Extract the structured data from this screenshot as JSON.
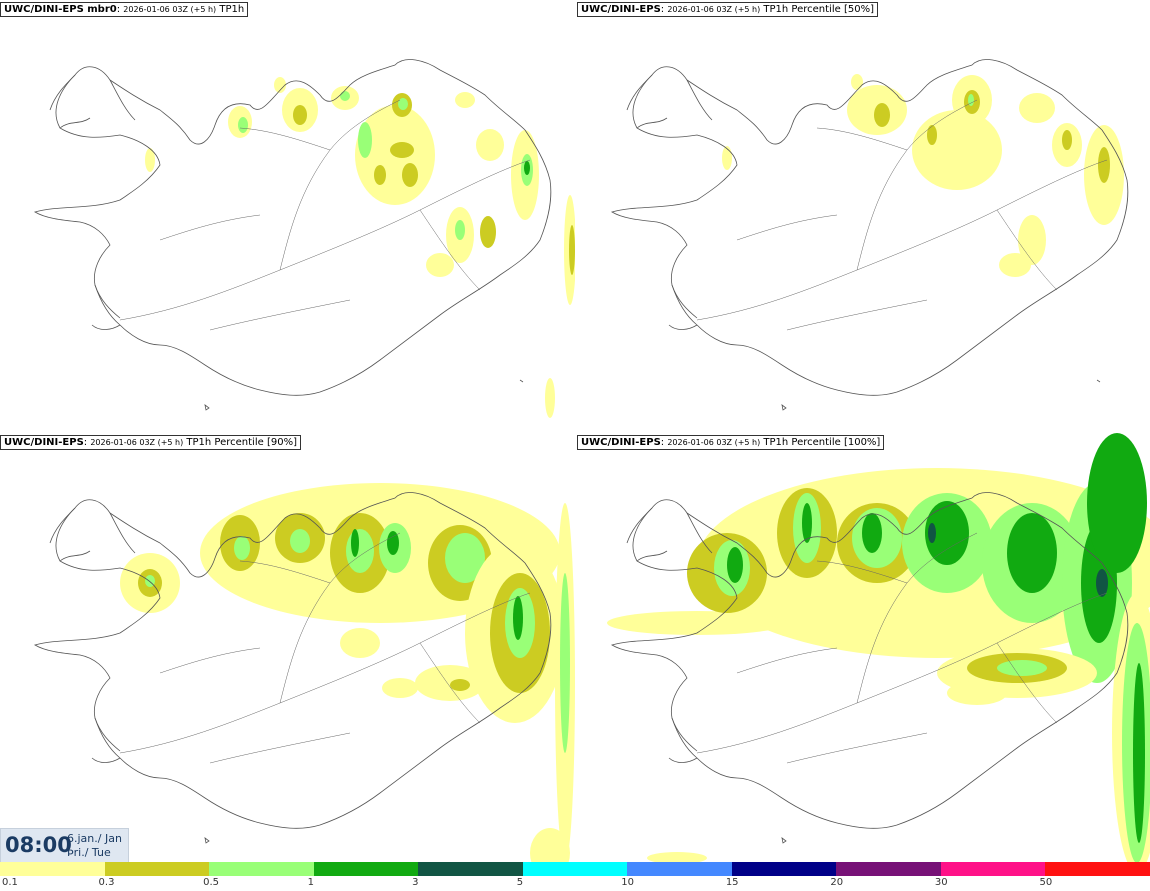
{
  "panels": [
    {
      "model": "UWC/DINI-EPS mbr0",
      "run": "2026-01-06 03Z (+5 h)",
      "field": "TP1h"
    },
    {
      "model": "UWC/DINI-EPS",
      "run": "2026-01-06 03Z (+5 h)",
      "field": "TP1h Percentile [50%]"
    },
    {
      "model": "UWC/DINI-EPS",
      "run": "2026-01-06 03Z (+5 h)",
      "field": "TP1h Percentile [90%]"
    },
    {
      "model": "UWC/DINI-EPS",
      "run": "2026-01-06 03Z (+5 h)",
      "field": "TP1h Percentile [100%]"
    }
  ],
  "timestamp": {
    "time": "08:00",
    "date_line1": "6.jan./ Jan",
    "date_line2": "Þri./ Tue"
  },
  "colorbar": {
    "colors": [
      "#ffff99",
      "#cccc22",
      "#99ff77",
      "#11aa11",
      "#115544",
      "#00ffff",
      "#4488ff",
      "#000088",
      "#771177",
      "#ff1188",
      "#ff1111"
    ],
    "labels": [
      "0.1",
      "0.3",
      "0.5",
      "1",
      "3",
      "5",
      "10",
      "15",
      "20",
      "30",
      "50"
    ]
  },
  "map_colors": {
    "coast": "#555555",
    "road": "#666666",
    "c1": "#ffff99",
    "c2": "#cccc22",
    "c3": "#99ff77",
    "c4": "#11aa11",
    "c5": "#115544"
  }
}
